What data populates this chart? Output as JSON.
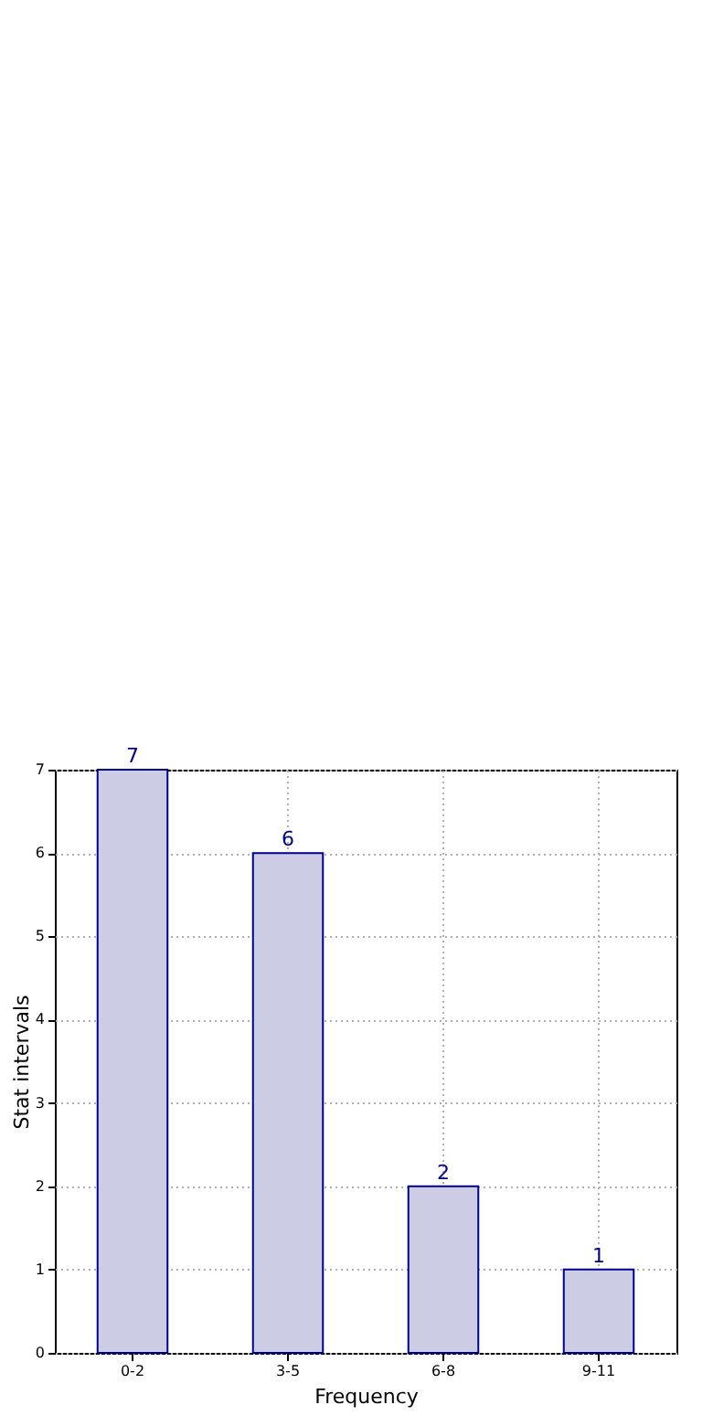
{
  "chart_data": {
    "type": "bar",
    "xlabel": "Frequency",
    "ylabel": "Stat intervals",
    "categories": [
      "0-2",
      "3-5",
      "6-8",
      "9-11"
    ],
    "values": [
      7,
      6,
      2,
      1
    ],
    "color": "#cccce4",
    "ylim": [
      0,
      7
    ],
    "yticks": [
      0,
      1,
      2,
      3,
      4,
      5,
      6,
      7
    ],
    "grid": true,
    "data_labels": true
  }
}
